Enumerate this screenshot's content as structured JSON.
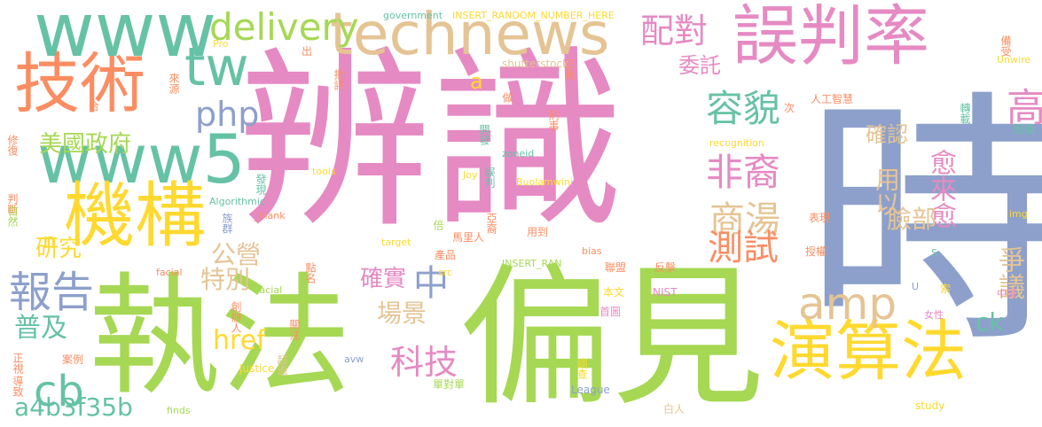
{
  "palette": {
    "pink": "#e68ac3",
    "green": "#a6d854",
    "teal": "#66c2a5",
    "orange": "#fc8d62",
    "blue": "#8da0cb",
    "yellow": "#ffd92f",
    "tan": "#e5c494",
    "grey": "#b3b3b3"
  },
  "words": {
    "w01": "辨識",
    "w02": "時",
    "w03": "執法",
    "w04": "偏見",
    "w05": "technews",
    "w06": "誤判率",
    "w07": "技術",
    "w08": "www",
    "w09": "www5",
    "w10": "機構",
    "w11": "演算法",
    "w12": "delivery",
    "w13": "配對",
    "w14": "tw",
    "w15": "php",
    "w16": "容貌",
    "w17": "amp",
    "w18": "非裔",
    "w19": "報告",
    "w20": "cb",
    "w21": "中",
    "w22": "商湯",
    "w23": "測試",
    "w24": "美國政府",
    "w25": "高",
    "w26": "確認",
    "w27": "委託",
    "w28": "愈來愈",
    "w29": "用以",
    "w30": "臉部",
    "w31": "爭議",
    "w32": "科技",
    "w33": "場景",
    "w34": "確實",
    "w35": "特別",
    "w36": "公營",
    "w37": "href",
    "w38": "普及",
    "w39": "研究",
    "w40": "a4b3f35b",
    "w41": "ck",
    "w42": "n",
    "w43": "a",
    "w44": "government",
    "w45": "INSERT_RANDOM_NUMBER_HERE",
    "w46": "shutterstock",
    "w47": "正義",
    "w48": "批評",
    "w49": "出",
    "w50": "Pro",
    "w51": "來源",
    "w52": "合",
    "w53": "修復",
    "w54": "判斷",
    "w55": "自然",
    "w56": "正視",
    "w57": "導致",
    "w58": "finds",
    "w59": "Justice",
    "w60": "案例",
    "w61": "超過",
    "w62": "avw",
    "w63": "單對單",
    "w64": "League",
    "w65": "調查",
    "w66": "白人",
    "w67": "study",
    "w68": "人工智慧",
    "w69": "次",
    "w70": "轉載",
    "w71": "困擾",
    "w72": "備受",
    "w73": "Unwire",
    "w74": "recognition",
    "w75": "刑事",
    "w76": "做",
    "w77": "開發",
    "w78": "zoneid",
    "w79": "誤判",
    "w80": "Joy",
    "w81": "Buolamwini",
    "w82": "tools",
    "w83": "發現",
    "w84": "Algorithmic",
    "w85": "族群",
    "w86": "_blank",
    "w87": "倍",
    "w88": "亞裔",
    "w89": "馬里人",
    "w90": "用到",
    "w91": "target",
    "w92": "bias",
    "w93": "產品",
    "w94": "INSERT_RAN",
    "w95": "src",
    "w96": "facial",
    "w97": "點名",
    "w98": "racial",
    "w99": "創辦人",
    "w100": "關注",
    "w101": "NIST",
    "w102": "本文",
    "w103": "首圖",
    "w104": "聯盟",
    "w105": "反擊",
    "w106": "表現",
    "w107": "授權",
    "w108": "S",
    "w109": "U",
    "w110": "索",
    "w111": "女性",
    "w112": "中國",
    "w113": "img"
  }
}
